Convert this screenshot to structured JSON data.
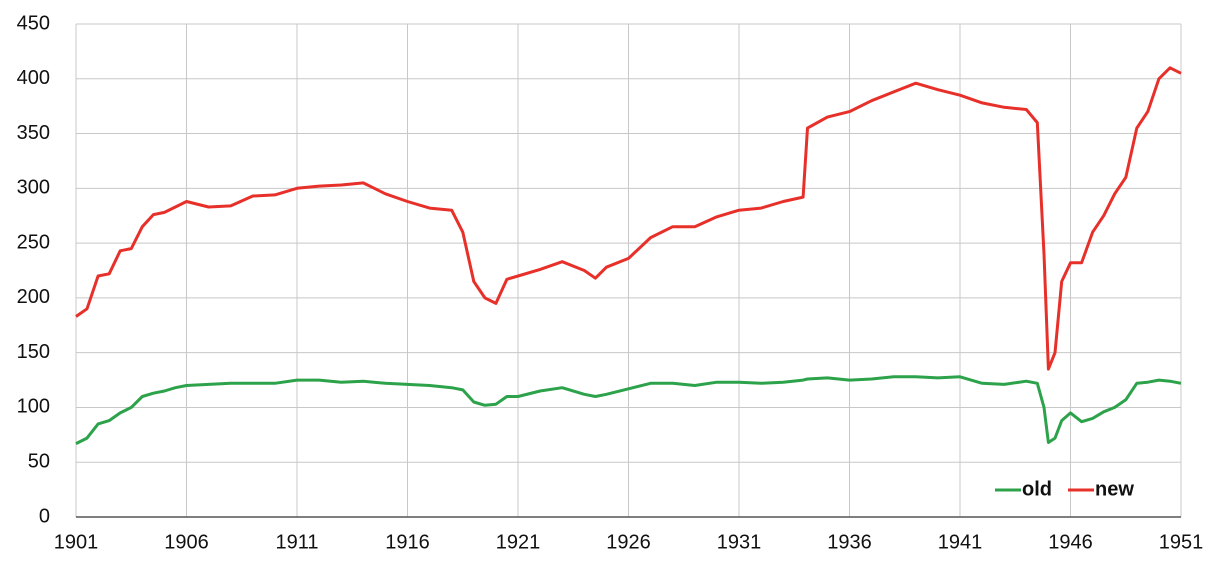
{
  "chart_data": {
    "type": "line",
    "x": [
      1901,
      1901.5,
      1902,
      1902.5,
      1903,
      1903.5,
      1904,
      1904.5,
      1905,
      1905.5,
      1906,
      1907,
      1908,
      1909,
      1910,
      1911,
      1912,
      1913,
      1914,
      1915,
      1916,
      1917,
      1918,
      1918.5,
      1919,
      1919.5,
      1920,
      1920.5,
      1921,
      1922,
      1923,
      1924,
      1924.5,
      1925,
      1926,
      1927,
      1928,
      1929,
      1930,
      1931,
      1932,
      1933,
      1933.9,
      1934.1,
      1935,
      1936,
      1937,
      1938,
      1939,
      1940,
      1941,
      1942,
      1943,
      1944,
      1944.5,
      1944.8,
      1945,
      1945.3,
      1945.6,
      1946,
      1946.5,
      1947,
      1947.5,
      1948,
      1948.5,
      1949,
      1949.5,
      1950,
      1950.5,
      1951
    ],
    "series": [
      {
        "name": "old",
        "color": "#2ca24a",
        "values": [
          67,
          72,
          85,
          88,
          95,
          100,
          110,
          113,
          115,
          118,
          120,
          121,
          122,
          122,
          122,
          125,
          125,
          123,
          124,
          122,
          121,
          120,
          118,
          116,
          105,
          102,
          103,
          110,
          110,
          115,
          118,
          112,
          110,
          112,
          117,
          122,
          122,
          120,
          123,
          123,
          122,
          123,
          125,
          126,
          127,
          125,
          126,
          128,
          128,
          127,
          128,
          122,
          121,
          124,
          122,
          100,
          68,
          72,
          88,
          95,
          87,
          90,
          96,
          100,
          107,
          122,
          123,
          125,
          124,
          122
        ]
      },
      {
        "name": "new",
        "color": "#e8302a",
        "values": [
          183,
          190,
          220,
          222,
          243,
          245,
          265,
          276,
          278,
          283,
          288,
          283,
          284,
          293,
          294,
          300,
          302,
          303,
          305,
          295,
          288,
          282,
          280,
          260,
          215,
          200,
          195,
          217,
          220,
          226,
          233,
          225,
          218,
          228,
          236,
          255,
          265,
          265,
          274,
          280,
          282,
          288,
          292,
          355,
          365,
          370,
          380,
          388,
          396,
          390,
          385,
          378,
          374,
          372,
          360,
          240,
          135,
          150,
          215,
          232,
          232,
          260,
          275,
          295,
          310,
          355,
          370,
          400,
          410,
          405
        ]
      }
    ],
    "xlim": [
      1901,
      1951
    ],
    "xticks": [
      1901,
      1906,
      1911,
      1916,
      1921,
      1926,
      1931,
      1936,
      1941,
      1946,
      1951
    ],
    "ylim": [
      0,
      450
    ],
    "yticks": [
      0,
      50,
      100,
      150,
      200,
      250,
      300,
      350,
      400,
      450
    ],
    "grid": true,
    "legend": "lower-right"
  }
}
